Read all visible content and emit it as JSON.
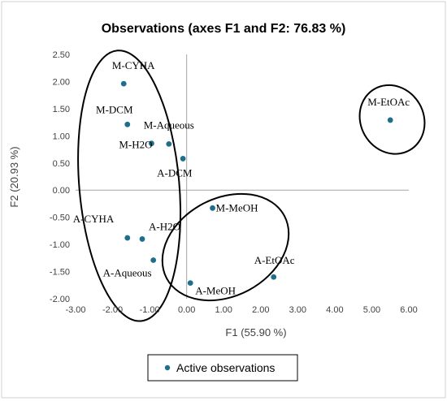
{
  "chart_data": {
    "type": "scatter",
    "title": "Observations (axes F1 and F2: 76.83 %)",
    "xlabel": "F1 (55.90 %)",
    "ylabel": "F2 (20.93 %)",
    "xlim": [
      -3.0,
      6.0
    ],
    "ylim": [
      -2.0,
      2.5
    ],
    "xticks": [
      "-3.00",
      "-2.00",
      "-1.00",
      "0.00",
      "1.00",
      "2.00",
      "3.00",
      "4.00",
      "5.00",
      "6.00"
    ],
    "yticks": [
      "2.50",
      "2.00",
      "1.50",
      "1.00",
      "0.50",
      "0.00",
      "-0.50",
      "-1.00",
      "-1.50",
      "-2.00"
    ],
    "point_color": "#1f6f8b",
    "legend": {
      "label": "Active observations",
      "position": "bottom"
    },
    "points": [
      {
        "label": "M-CYHA",
        "x": -1.7,
        "y": 1.96
      },
      {
        "label": "M-DCM",
        "x": -1.6,
        "y": 1.21
      },
      {
        "label": "M-Aqueous",
        "x": -0.48,
        "y": 0.85
      },
      {
        "label": "M-H2O",
        "x": -0.95,
        "y": 0.86
      },
      {
        "label": "A-DCM",
        "x": -0.1,
        "y": 0.58
      },
      {
        "label": "M-MeOH",
        "x": 0.7,
        "y": -0.33
      },
      {
        "label": "A-CYHA",
        "x": -1.6,
        "y": -0.88
      },
      {
        "label": "A-H2O",
        "x": -1.2,
        "y": -0.9
      },
      {
        "label": "A-Aqueous",
        "x": -0.9,
        "y": -1.29
      },
      {
        "label": "A-MeOH",
        "x": 0.1,
        "y": -1.71
      },
      {
        "label": "A-EtOAc",
        "x": 2.35,
        "y": -1.6
      },
      {
        "label": "M-EtOAc",
        "x": 5.5,
        "y": 1.29
      }
    ],
    "clusters": [
      {
        "cx": -1.55,
        "cy": 0.08,
        "rx": 1.35,
        "ry": 2.5,
        "rotate": -5
      },
      {
        "cx": 1.05,
        "cy": -1.05,
        "rx": 1.8,
        "ry": 0.9,
        "rotate": -28
      },
      {
        "cx": 5.55,
        "cy": 1.3,
        "rx": 0.85,
        "ry": 0.65,
        "rotate": -30
      }
    ]
  }
}
